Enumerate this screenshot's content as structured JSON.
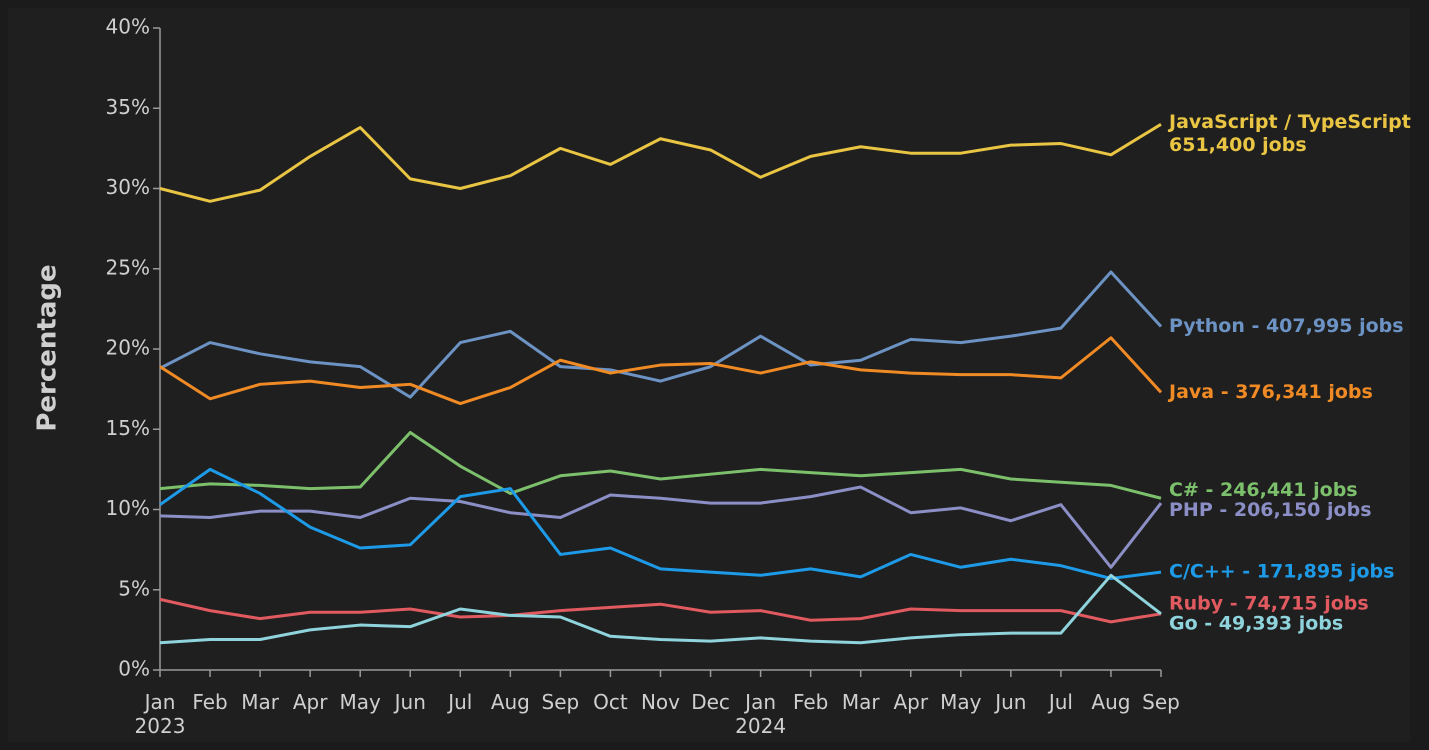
{
  "chart_data": {
    "type": "line",
    "y_label": "Percentage",
    "categories": [
      "Jan 2023",
      "Feb",
      "Mar",
      "Apr",
      "May",
      "Jun",
      "Jul",
      "Aug",
      "Sep",
      "Oct",
      "Nov",
      "Dec",
      "Jan 2024",
      "Feb",
      "Mar",
      "Apr",
      "May",
      "Jun",
      "Jul",
      "Aug",
      "Sep"
    ],
    "ylim": [
      0,
      40
    ],
    "yticks": [
      {
        "value": 0,
        "label": "0%"
      },
      {
        "value": 5,
        "label": "5%"
      },
      {
        "value": 10,
        "label": "10%"
      },
      {
        "value": 15,
        "label": "15%"
      },
      {
        "value": 20,
        "label": "20%"
      },
      {
        "value": 25,
        "label": "25%"
      },
      {
        "value": 30,
        "label": "30%"
      },
      {
        "value": 35,
        "label": "35%"
      },
      {
        "value": 40,
        "label": "40%"
      }
    ],
    "series": [
      {
        "name": "JavaScript / TypeScript",
        "jobs_label": "651,400 jobs",
        "color": "#e9c543",
        "values": [
          30.0,
          29.2,
          29.9,
          32.0,
          33.8,
          30.6,
          30.0,
          30.8,
          32.5,
          31.5,
          33.1,
          32.4,
          30.7,
          32.0,
          32.6,
          32.2,
          32.2,
          32.7,
          32.8,
          32.1,
          34.0
        ]
      },
      {
        "name": "Python - 407,995 jobs",
        "color": "#6c93c4",
        "values": [
          18.8,
          20.4,
          19.7,
          19.2,
          18.9,
          17.0,
          20.4,
          21.1,
          18.9,
          18.7,
          18.0,
          18.9,
          20.8,
          19.0,
          19.3,
          20.6,
          20.4,
          20.8,
          21.3,
          24.8,
          21.4
        ]
      },
      {
        "name": "Java - 376,341 jobs",
        "color": "#f08a24",
        "values": [
          18.9,
          16.9,
          17.8,
          18.0,
          17.6,
          17.8,
          16.6,
          17.6,
          19.3,
          18.5,
          19.0,
          19.1,
          18.5,
          19.2,
          18.7,
          18.5,
          18.4,
          18.4,
          18.2,
          20.7,
          17.3
        ]
      },
      {
        "name": "C# - 246,441 jobs",
        "color": "#7cc06c",
        "values": [
          11.3,
          11.6,
          11.5,
          11.3,
          11.4,
          14.8,
          12.7,
          11.0,
          12.1,
          12.4,
          11.9,
          12.2,
          12.5,
          12.3,
          12.1,
          12.3,
          12.5,
          11.9,
          11.7,
          11.5,
          10.7
        ]
      },
      {
        "name": "PHP - 206,150 jobs",
        "color": "#8b8fc6",
        "values": [
          9.6,
          9.5,
          9.9,
          9.9,
          9.5,
          10.7,
          10.5,
          9.8,
          9.5,
          10.9,
          10.7,
          10.4,
          10.4,
          10.8,
          11.4,
          9.8,
          10.1,
          9.3,
          10.3,
          6.4,
          10.4
        ]
      },
      {
        "name": "C/C++ - 171,895 jobs",
        "color": "#1e9be8",
        "values": [
          10.3,
          12.5,
          11.0,
          8.9,
          7.6,
          7.8,
          10.8,
          11.3,
          7.2,
          7.6,
          6.3,
          6.1,
          5.9,
          6.3,
          5.8,
          7.2,
          6.4,
          6.9,
          6.5,
          5.7,
          6.1
        ]
      },
      {
        "name": "Ruby - 74,715 jobs",
        "color": "#e05a60",
        "values": [
          4.4,
          3.7,
          3.2,
          3.6,
          3.6,
          3.8,
          3.3,
          3.4,
          3.7,
          3.9,
          4.1,
          3.6,
          3.7,
          3.1,
          3.2,
          3.8,
          3.7,
          3.7,
          3.7,
          3.0,
          3.5
        ]
      },
      {
        "name": "Go - 49,393 jobs",
        "color": "#8fd3dc",
        "values": [
          1.7,
          1.9,
          1.9,
          2.5,
          2.8,
          2.7,
          3.8,
          3.4,
          3.3,
          2.1,
          1.9,
          1.8,
          2.0,
          1.8,
          1.7,
          2.0,
          2.2,
          2.3,
          2.3,
          5.9,
          3.5
        ]
      }
    ]
  }
}
